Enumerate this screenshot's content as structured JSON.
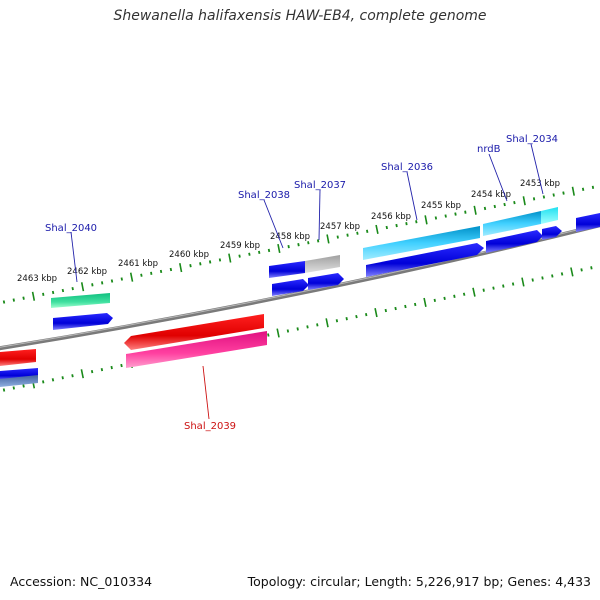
{
  "title": "Shewanella halifaxensis HAW-EB4, complete genome",
  "footer": {
    "accession": "Accession: NC_010334",
    "summary": "Topology: circular; Length: 5,226,917 bp; Genes: 4,433"
  },
  "colors": {
    "backbone": "#808080",
    "tick": "#1a8a1a",
    "cds_forward": "#0000e0",
    "cds_reverse": "#0000e0",
    "rrna": "#20c0ff",
    "label_blue": "#1a1aaa",
    "label_red": "#cc1111"
  },
  "tick_labels": [
    "2463 kbp",
    "2462 kbp",
    "2461 kbp",
    "2460 kbp",
    "2459 kbp",
    "2458 kbp",
    "2457 kbp",
    "2456 kbp",
    "2455 kbp",
    "2454 kbp",
    "2453 kbp"
  ],
  "genes": [
    {
      "name": "Shal_2040",
      "color": "blue"
    },
    {
      "name": "Shal_2039",
      "color": "red"
    },
    {
      "name": "Shal_2038",
      "color": "blue"
    },
    {
      "name": "Shal_2037",
      "color": "blue"
    },
    {
      "name": "Shal_2036",
      "color": "blue"
    },
    {
      "name": "nrdB",
      "color": "blue"
    },
    {
      "name": "Shal_2034",
      "color": "blue"
    }
  ]
}
